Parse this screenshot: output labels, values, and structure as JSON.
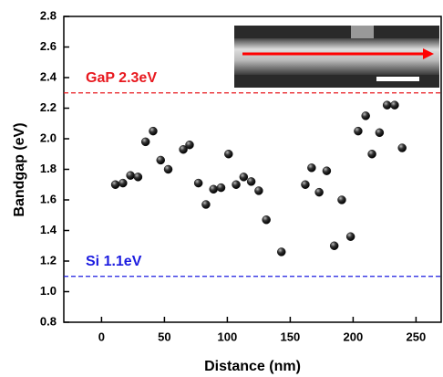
{
  "chart_data": {
    "type": "scatter",
    "x_label": "Distance (nm)",
    "y_label": "Bandgap (eV)",
    "xlim": [
      -30,
      270
    ],
    "xticks": [
      0,
      50,
      100,
      150,
      200,
      250
    ],
    "ylim": [
      0.8,
      2.8
    ],
    "yticks": [
      {
        "value": 0.8,
        "label": "0.8"
      },
      {
        "value": 1.0,
        "label": "1.0"
      },
      {
        "value": 1.2,
        "label": "1.2"
      },
      {
        "value": 1.4,
        "label": "1.4"
      },
      {
        "value": 1.6,
        "label": "1.6"
      },
      {
        "value": 1.8,
        "label": "1.8"
      },
      {
        "value": 2.0,
        "label": "2.0"
      },
      {
        "value": 2.2,
        "label": "2.2"
      },
      {
        "value": 2.4,
        "label": "2.4"
      },
      {
        "value": 2.6,
        "label": "2.6"
      },
      {
        "value": 2.8,
        "label": "2.8"
      }
    ],
    "color": "#111111",
    "x": [
      11,
      17,
      23,
      29,
      35,
      41,
      47,
      53,
      65,
      70,
      77,
      83,
      89,
      95,
      101,
      107,
      113,
      119,
      125,
      131,
      143,
      162,
      167,
      173,
      179,
      185,
      191,
      198,
      204,
      210,
      215,
      221,
      227,
      233,
      239
    ],
    "values": [
      1.7,
      1.71,
      1.76,
      1.75,
      1.98,
      2.05,
      1.86,
      1.8,
      1.93,
      1.96,
      1.71,
      1.57,
      1.67,
      1.68,
      1.9,
      1.7,
      1.75,
      1.72,
      1.66,
      1.47,
      1.26,
      1.7,
      1.81,
      1.65,
      1.79,
      1.3,
      1.6,
      1.36,
      2.05,
      2.15,
      1.9,
      2.04,
      2.22,
      2.22,
      1.94
    ],
    "reference_lines": [
      {
        "label": "GaP 2.3eV",
        "value": 2.3,
        "color": "#e8191f"
      },
      {
        "label": "Si 1.1eV",
        "value": 1.1,
        "color": "#1c1ce0"
      }
    ]
  }
}
